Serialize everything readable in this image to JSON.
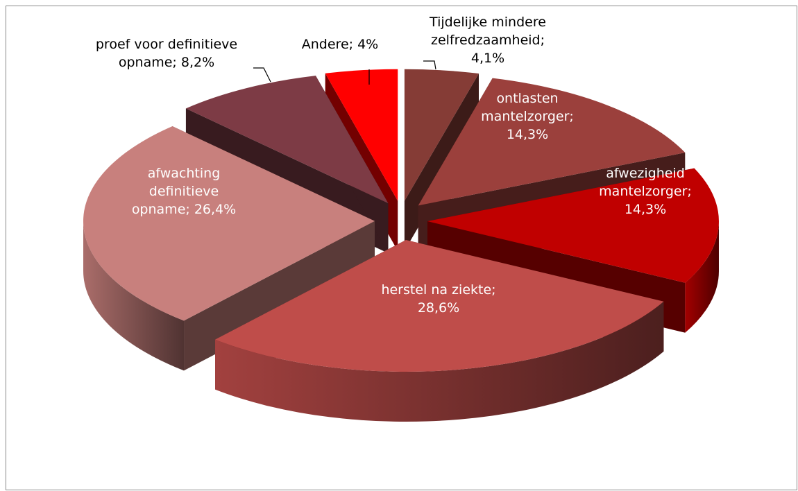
{
  "chart_data": {
    "type": "pie3d",
    "categories": [
      "Tijdelijke mindere zelfredzaamheid",
      "ontlasten mantelzorger",
      "afwezigheid mantelzorger",
      "herstel na ziekte",
      "afwachting definitieve opname",
      "proef voor definitieve opname",
      "Andere"
    ],
    "values": [
      4.1,
      14.3,
      14.3,
      28.6,
      26.4,
      8.2,
      4
    ],
    "value_labels": [
      [
        "Tijdelijke mindere",
        "zelfredzaamheid;",
        "4,1%"
      ],
      [
        "ontlasten",
        "mantelzorger;",
        "14,3%"
      ],
      [
        "afwezigheid",
        "mantelzorger;",
        "14,3%"
      ],
      [
        "herstel na ziekte;",
        "28,6%"
      ],
      [
        "afwachting",
        "definitieve",
        "opname; 26,4%"
      ],
      [
        "proef voor definitieve",
        "opname; 8,2%"
      ],
      [
        "Andere; 4%"
      ]
    ],
    "colors": [
      "#853c36",
      "#9b403c",
      "#c00000",
      "#bf4d4a",
      "#c8807d",
      "#7d3b45",
      "#ff0000"
    ]
  }
}
